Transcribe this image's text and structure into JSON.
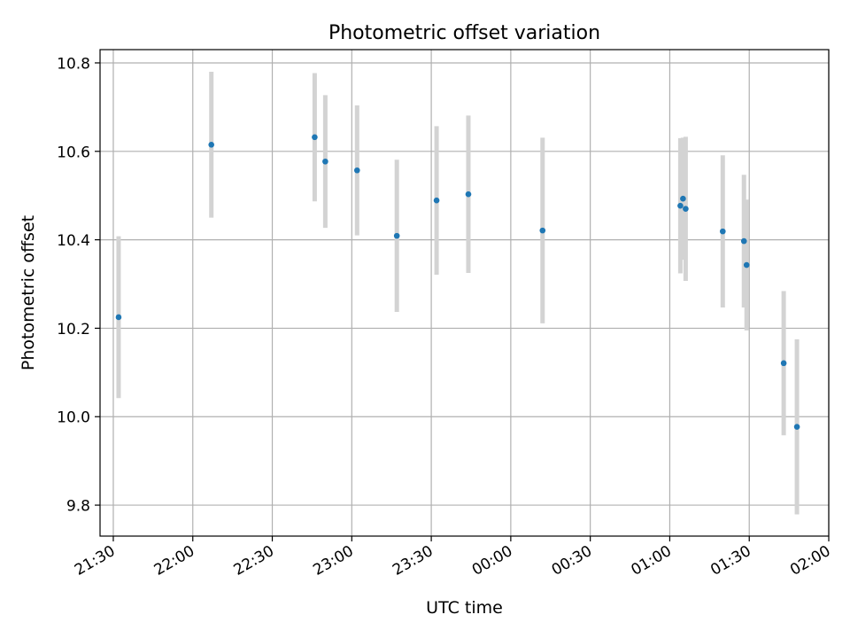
{
  "chart_data": {
    "type": "scatter",
    "title": "Photometric offset variation",
    "xlabel": "UTC time",
    "ylabel": "Photometric offset",
    "grid": true,
    "x_ticks": [
      "21:30",
      "22:00",
      "22:30",
      "23:00",
      "23:30",
      "00:00",
      "00:30",
      "01:00",
      "01:30",
      "02:00"
    ],
    "x_tick_times": [
      "21:30",
      "22:00",
      "22:30",
      "23:00",
      "23:30",
      "00:00",
      "00:30",
      "01:00",
      "01:30",
      "02:00"
    ],
    "y_ticks": [
      "9.8",
      "10.0",
      "10.2",
      "10.4",
      "10.6",
      "10.8"
    ],
    "y_tick_values": [
      9.8,
      10.0,
      10.2,
      10.4,
      10.6,
      10.8
    ],
    "xlim": [
      "21:25",
      "02:00"
    ],
    "ylim": [
      9.73,
      10.83
    ],
    "colors": {
      "marker": "#1f77b4",
      "errorbar": "#d3d3d3",
      "grid": "#b0b0b0"
    },
    "points": [
      {
        "time": "21:32",
        "y": 10.225,
        "yerr": 0.183
      },
      {
        "time": "22:07",
        "y": 10.615,
        "yerr": 0.165
      },
      {
        "time": "22:46",
        "y": 10.632,
        "yerr": 0.145
      },
      {
        "time": "22:50",
        "y": 10.577,
        "yerr": 0.15
      },
      {
        "time": "23:02",
        "y": 10.557,
        "yerr": 0.147
      },
      {
        "time": "23:17",
        "y": 10.409,
        "yerr": 0.172
      },
      {
        "time": "23:32",
        "y": 10.489,
        "yerr": 0.168
      },
      {
        "time": "23:44",
        "y": 10.503,
        "yerr": 0.178
      },
      {
        "time": "00:12",
        "y": 10.421,
        "yerr": 0.21
      },
      {
        "time": "01:04",
        "y": 10.477,
        "yerr": 0.153
      },
      {
        "time": "01:05",
        "y": 10.493,
        "yerr": 0.138
      },
      {
        "time": "01:06",
        "y": 10.47,
        "yerr": 0.163
      },
      {
        "time": "01:20",
        "y": 10.419,
        "yerr": 0.172
      },
      {
        "time": "01:28",
        "y": 10.397,
        "yerr": 0.15
      },
      {
        "time": "01:29",
        "y": 10.343,
        "yerr": 0.148
      },
      {
        "time": "01:43",
        "y": 10.121,
        "yerr": 0.163
      },
      {
        "time": "01:48",
        "y": 9.977,
        "yerr": 0.198
      }
    ]
  }
}
